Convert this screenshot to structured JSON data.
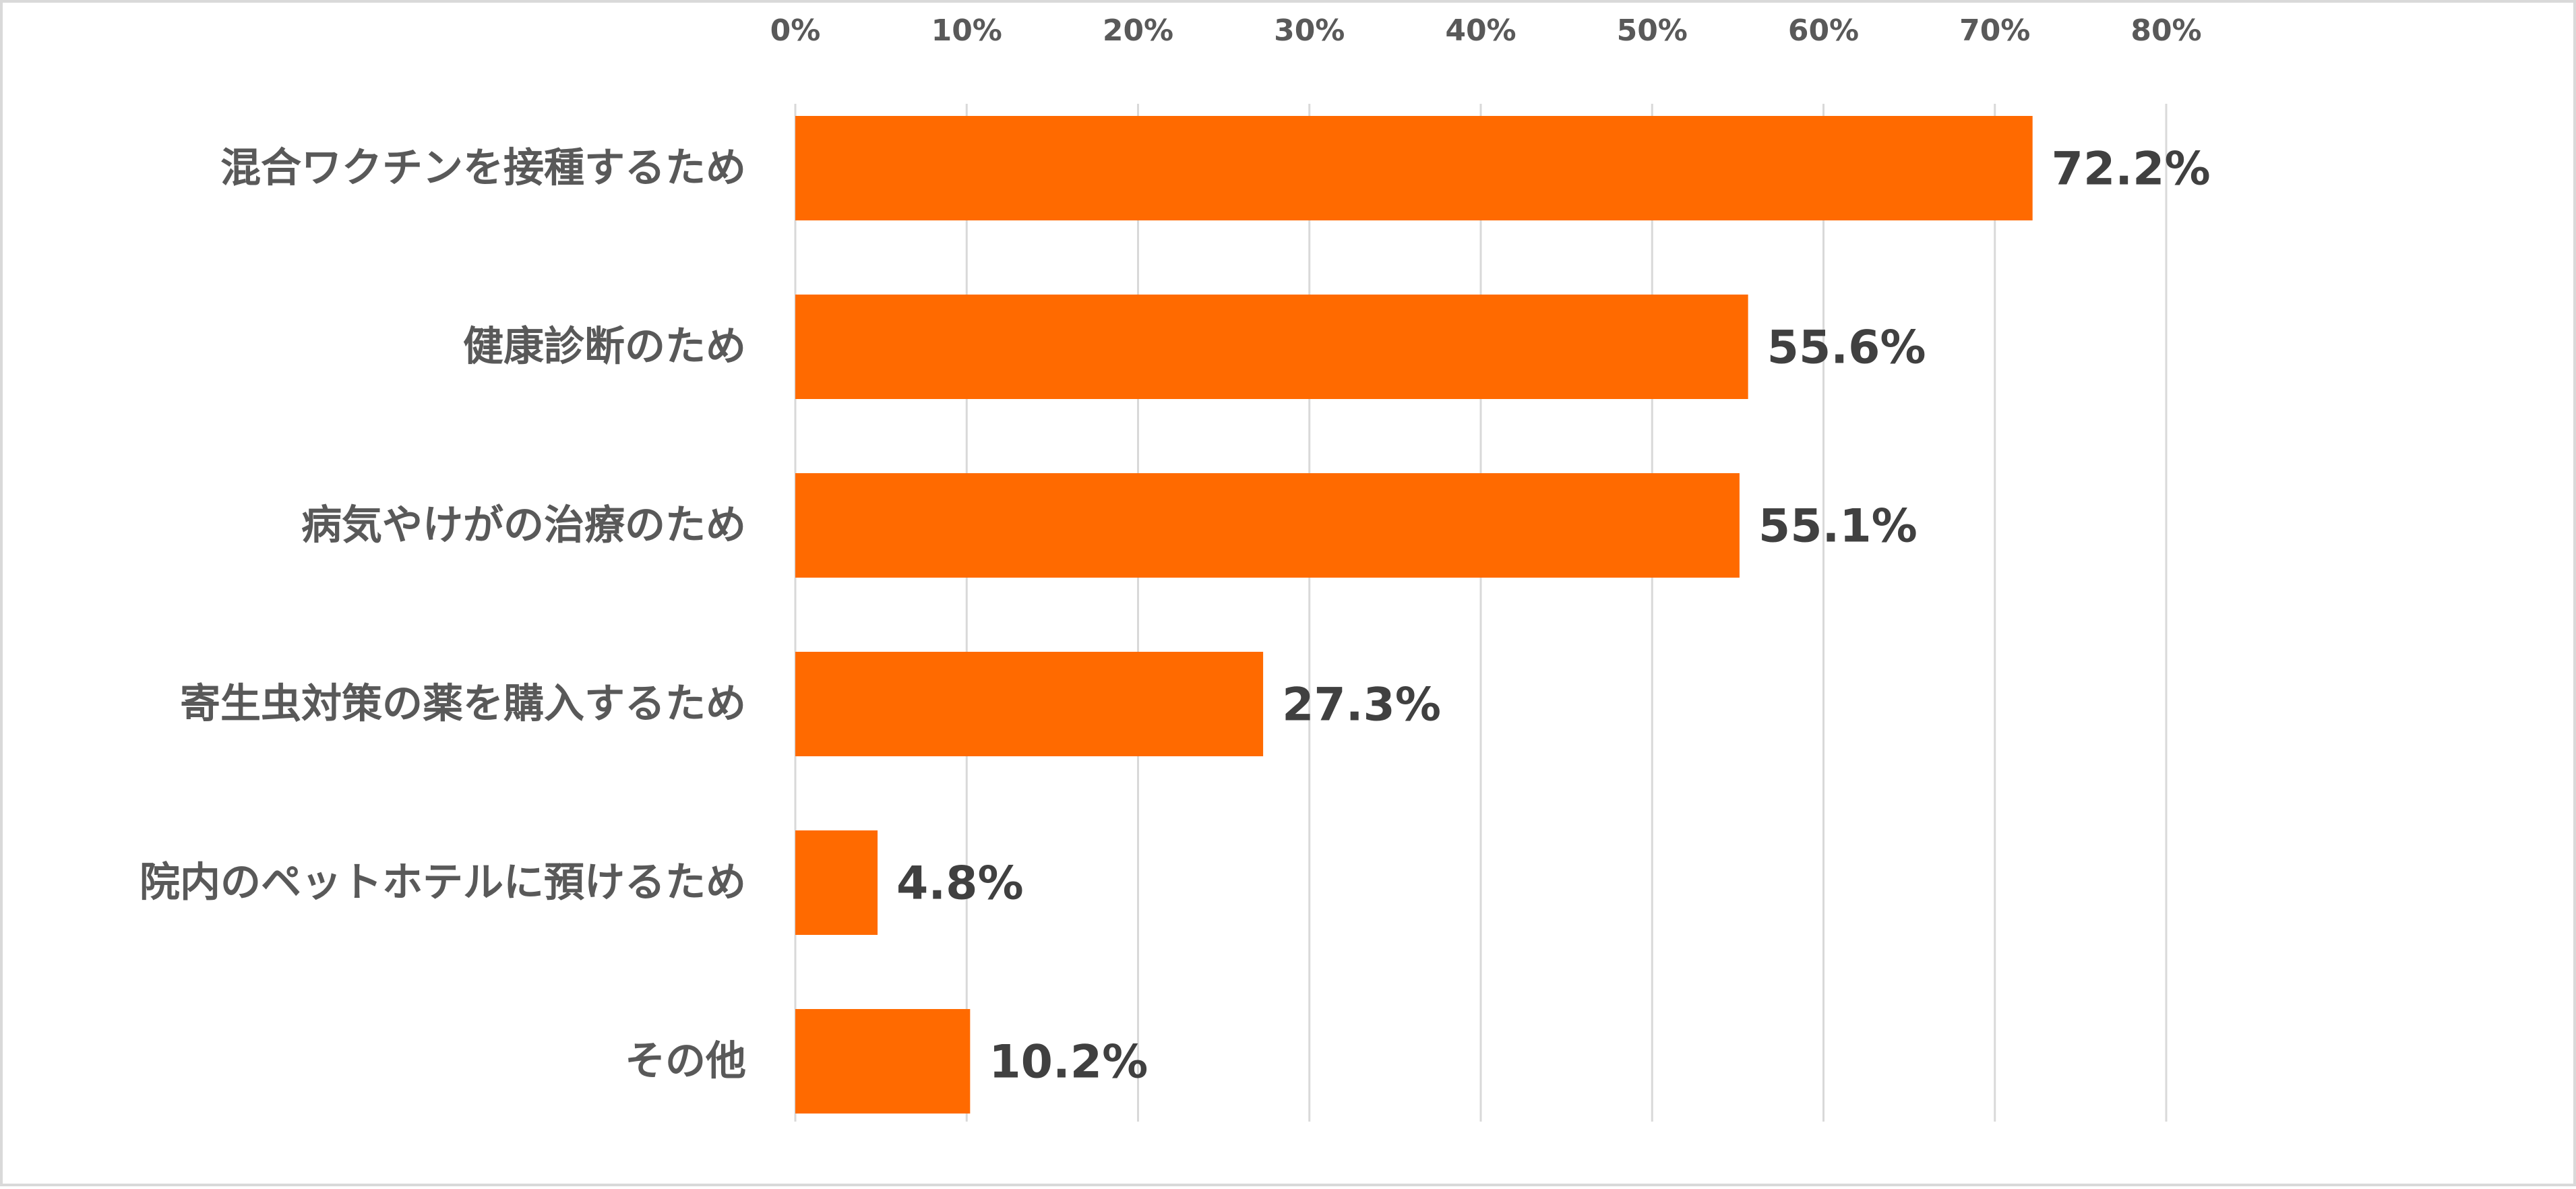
{
  "chart_data": {
    "type": "bar",
    "orientation": "horizontal",
    "title": "",
    "xlabel": "",
    "ylabel": "",
    "xlim": [
      0,
      80
    ],
    "x_ticks": [
      "0%",
      "10%",
      "20%",
      "30%",
      "40%",
      "50%",
      "60%",
      "70%",
      "80%"
    ],
    "x_tick_values": [
      0,
      10,
      20,
      30,
      40,
      50,
      60,
      70,
      80
    ],
    "axis_position": "top",
    "grid": true,
    "categories": [
      "混合ワクチンを接種するため",
      "健康診断のため",
      "病気やけがの治療のため",
      "寄生虫対策の薬を購入するため",
      "院内のペットホテルに預けるため",
      "その他"
    ],
    "values": [
      72.2,
      55.6,
      55.1,
      27.3,
      4.8,
      10.2
    ],
    "value_labels": [
      "72.2%",
      "55.6%",
      "55.1%",
      "27.3%",
      "4.8%",
      "10.2%"
    ],
    "bar_color": "#FF6A00",
    "legend": "none"
  }
}
